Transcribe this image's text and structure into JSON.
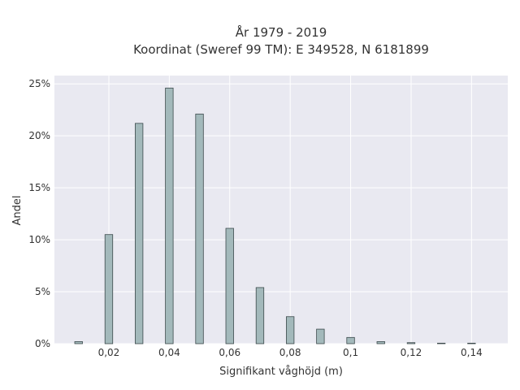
{
  "chart_data": {
    "type": "bar",
    "title_lines": [
      "År 1979 - 2019",
      "Koordinat (Sweref 99 TM): E 349528, N 6181899"
    ],
    "xlabel": "Signifikant våghöjd (m)",
    "ylabel": "Andel",
    "x": [
      0.01,
      0.02,
      0.03,
      0.04,
      0.05,
      0.06,
      0.07,
      0.08,
      0.09,
      0.1,
      0.11,
      0.12,
      0.13,
      0.14
    ],
    "values": [
      0.2,
      10.5,
      21.2,
      24.6,
      22.1,
      11.1,
      5.4,
      2.6,
      1.4,
      0.6,
      0.2,
      0.1,
      0.05,
      0.05
    ],
    "xlim": [
      0.002,
      0.152
    ],
    "ylim": [
      0,
      25.8
    ],
    "x_ticks": [
      0.02,
      0.04,
      0.06,
      0.08,
      0.1,
      0.12,
      0.14
    ],
    "x_tick_labels": [
      "0,02",
      "0,04",
      "0,06",
      "0,08",
      "0,1",
      "0,12",
      "0,14"
    ],
    "y_ticks": [
      0,
      5,
      10,
      15,
      20,
      25
    ],
    "y_tick_labels": [
      "0%",
      "5%",
      "10%",
      "15%",
      "20%",
      "25%"
    ],
    "grid": true,
    "colors": {
      "plot_background": "#e9e9f1",
      "bar_fill": "#a3b9bb",
      "bar_edge": "#3c4a4c",
      "grid": "#ffffff"
    }
  }
}
